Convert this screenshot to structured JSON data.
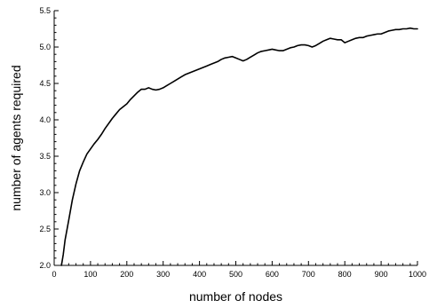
{
  "chart_data": {
    "type": "line",
    "xlabel": "number of nodes",
    "ylabel": "number of agents required",
    "xlim": [
      0,
      1000
    ],
    "ylim": [
      2.0,
      5.5
    ],
    "xticks": [
      0,
      100,
      200,
      300,
      400,
      500,
      600,
      700,
      800,
      900,
      1000
    ],
    "xtick_labels": [
      "0",
      "100",
      "200",
      "300",
      "400",
      "500",
      "600",
      "700",
      "800",
      "900",
      "1000"
    ],
    "yticks": [
      2.0,
      2.5,
      3.0,
      3.5,
      4.0,
      4.5,
      5.0,
      5.5
    ],
    "ytick_labels": [
      "2.0",
      "2.5",
      "3.0",
      "3.5",
      "4.0",
      "4.5",
      "5.0",
      "5.5"
    ],
    "grid": false,
    "legend": false,
    "series": [
      {
        "color": "#000000",
        "x": [
          20,
          25,
          30,
          40,
          50,
          60,
          70,
          80,
          90,
          100,
          110,
          120,
          130,
          140,
          150,
          160,
          170,
          180,
          190,
          200,
          210,
          220,
          230,
          240,
          250,
          260,
          270,
          280,
          290,
          300,
          310,
          320,
          330,
          340,
          350,
          360,
          370,
          380,
          390,
          400,
          410,
          420,
          430,
          440,
          450,
          460,
          470,
          480,
          490,
          500,
          510,
          520,
          530,
          540,
          550,
          560,
          570,
          580,
          590,
          600,
          610,
          620,
          630,
          640,
          650,
          660,
          670,
          680,
          690,
          700,
          710,
          720,
          730,
          740,
          750,
          760,
          770,
          780,
          790,
          800,
          810,
          820,
          830,
          840,
          850,
          860,
          870,
          880,
          890,
          900,
          910,
          920,
          930,
          940,
          950,
          960,
          970,
          980,
          990,
          1000
        ],
        "y": [
          2.0,
          2.15,
          2.35,
          2.62,
          2.9,
          3.12,
          3.3,
          3.42,
          3.53,
          3.6,
          3.67,
          3.73,
          3.8,
          3.88,
          3.95,
          4.02,
          4.08,
          4.14,
          4.18,
          4.22,
          4.28,
          4.33,
          4.38,
          4.42,
          4.42,
          4.44,
          4.42,
          4.41,
          4.42,
          4.44,
          4.47,
          4.5,
          4.53,
          4.56,
          4.59,
          4.62,
          4.64,
          4.66,
          4.68,
          4.7,
          4.72,
          4.74,
          4.76,
          4.78,
          4.8,
          4.83,
          4.85,
          4.86,
          4.87,
          4.85,
          4.83,
          4.81,
          4.83,
          4.86,
          4.89,
          4.92,
          4.94,
          4.95,
          4.96,
          4.97,
          4.96,
          4.95,
          4.95,
          4.97,
          4.99,
          5.0,
          5.02,
          5.03,
          5.03,
          5.02,
          5.0,
          5.02,
          5.05,
          5.08,
          5.1,
          5.12,
          5.11,
          5.1,
          5.1,
          5.06,
          5.08,
          5.1,
          5.12,
          5.13,
          5.13,
          5.15,
          5.16,
          5.17,
          5.18,
          5.18,
          5.2,
          5.22,
          5.23,
          5.24,
          5.24,
          5.25,
          5.25,
          5.26,
          5.25,
          5.25
        ]
      }
    ]
  }
}
